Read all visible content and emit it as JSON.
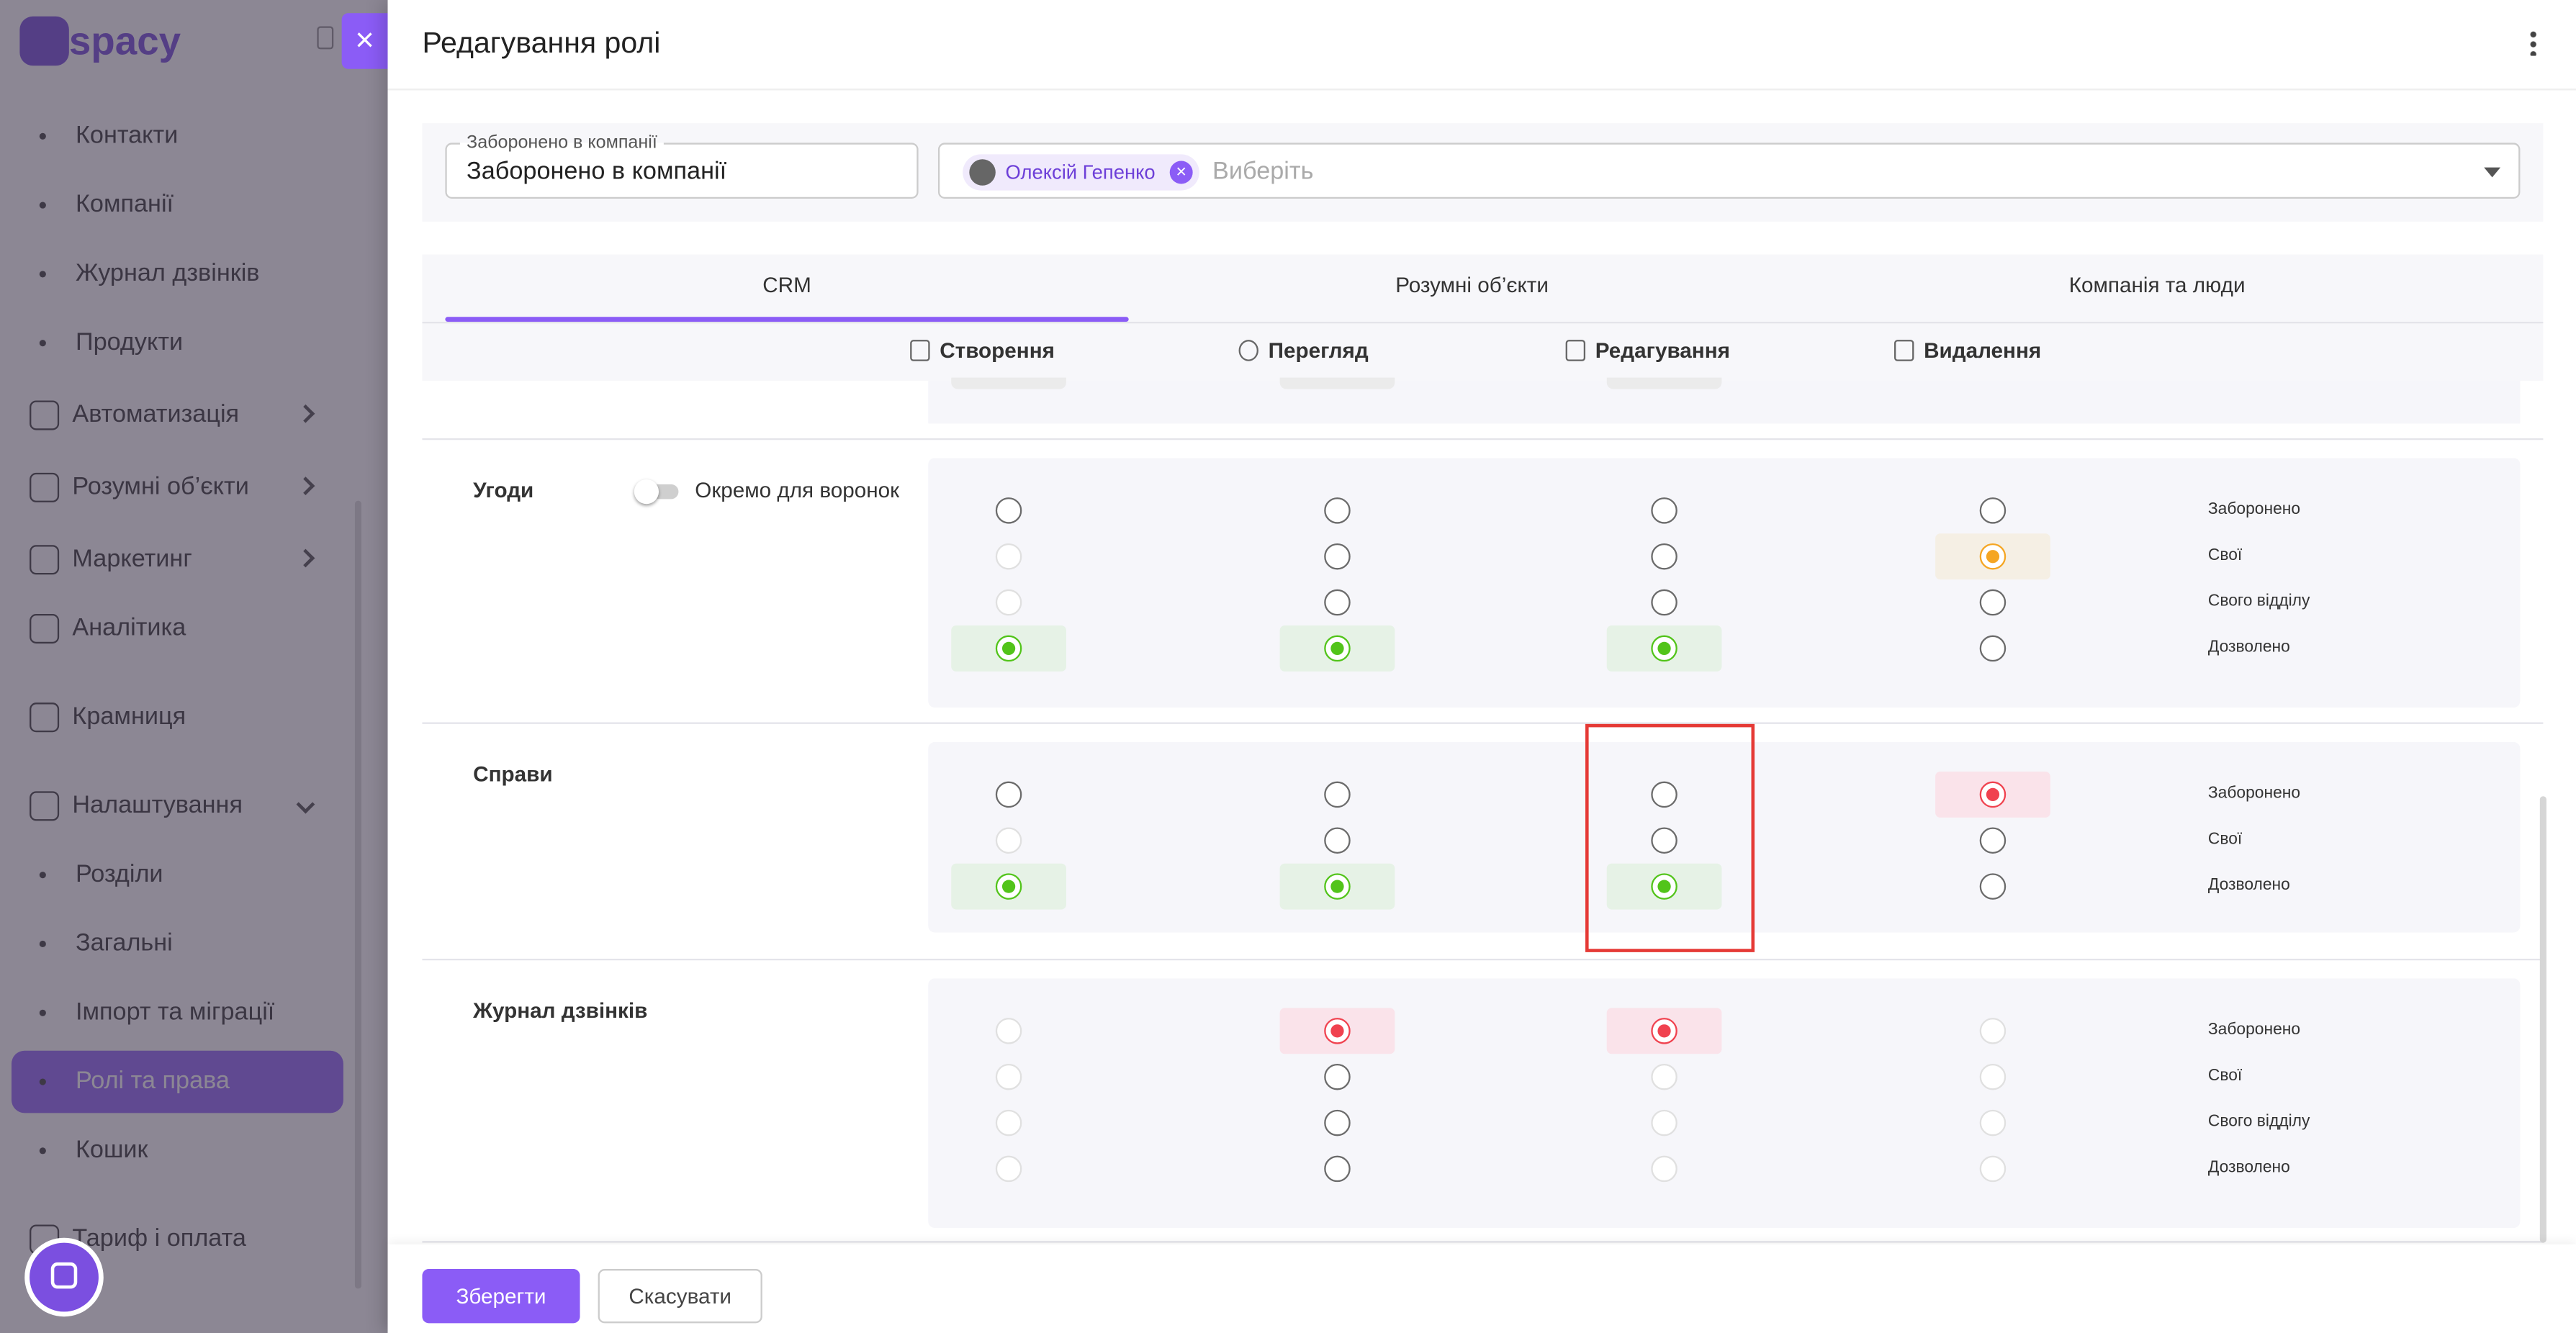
{
  "sidebar": {
    "logo": "spacy",
    "items": [
      {
        "label": "Контакти",
        "kind": "bullet"
      },
      {
        "label": "Компанії",
        "kind": "bullet"
      },
      {
        "label": "Журнал дзвінків",
        "kind": "bullet"
      },
      {
        "label": "Продукти",
        "kind": "bullet"
      },
      {
        "label": "Автоматизація",
        "kind": "group",
        "chevron": "right"
      },
      {
        "label": "Розумні об’єкти",
        "kind": "group",
        "chevron": "right"
      },
      {
        "label": "Маркетинг",
        "kind": "group",
        "chevron": "right"
      },
      {
        "label": "Аналітика",
        "kind": "group"
      },
      {
        "label": "Крамниця",
        "kind": "group"
      },
      {
        "label": "Налаштування",
        "kind": "group",
        "chevron": "down"
      },
      {
        "label": "Розділи",
        "kind": "bullet"
      },
      {
        "label": "Загальні",
        "kind": "bullet"
      },
      {
        "label": "Імпорт та міграції",
        "kind": "bullet"
      },
      {
        "label": "Ролі та права",
        "kind": "bullet",
        "active": true
      },
      {
        "label": "Кошик",
        "kind": "bullet"
      },
      {
        "label": "Тариф і оплата",
        "kind": "group"
      }
    ]
  },
  "modal": {
    "title": "Редагування ролі",
    "name_field": {
      "label": "Заборонено в компанії",
      "value": "Заборонено в компанії"
    },
    "users_field": {
      "chip": "Олексій Гепенко",
      "placeholder": "Виберіть"
    },
    "tabs": [
      {
        "label": "CRM",
        "active": true
      },
      {
        "label": "Розумні об’єкти"
      },
      {
        "label": "Компанія та люди"
      }
    ],
    "columns": [
      "Створення",
      "Перегляд",
      "Редагування",
      "Видалення"
    ],
    "sections": [
      {
        "name": "Угоди",
        "toggle": "Окремо для воронок",
        "rows": [
          {
            "label": "Заборонено",
            "cells": [
              "off",
              "off",
              "off",
              "off"
            ]
          },
          {
            "label": "Свої",
            "cells": [
              "disabled",
              "off",
              "off",
              "yellow"
            ]
          },
          {
            "label": "Свого відділу",
            "cells": [
              "disabled",
              "off",
              "off",
              "off"
            ]
          },
          {
            "label": "Дозволено",
            "cells": [
              "green",
              "green",
              "green",
              "off"
            ]
          }
        ]
      },
      {
        "name": "Справи",
        "rows": [
          {
            "label": "Заборонено",
            "cells": [
              "off",
              "off",
              "off",
              "red"
            ]
          },
          {
            "label": "Свої",
            "cells": [
              "disabled",
              "off",
              "off",
              "off"
            ]
          },
          {
            "label": "Дозволено",
            "cells": [
              "green",
              "green",
              "green",
              "off"
            ]
          }
        ]
      },
      {
        "name": "Журнал дзвінків",
        "rows": [
          {
            "label": "Заборонено",
            "cells": [
              "disabled",
              "red",
              "red",
              "disabled"
            ]
          },
          {
            "label": "Свої",
            "cells": [
              "disabled",
              "off",
              "disabled",
              "disabled"
            ]
          },
          {
            "label": "Свого відділу",
            "cells": [
              "disabled",
              "off",
              "disabled",
              "disabled"
            ]
          },
          {
            "label": "Дозволено",
            "cells": [
              "disabled",
              "off",
              "disabled",
              "disabled"
            ]
          }
        ]
      }
    ],
    "buttons": {
      "save": "Зберегти",
      "cancel": "Скасувати"
    }
  }
}
